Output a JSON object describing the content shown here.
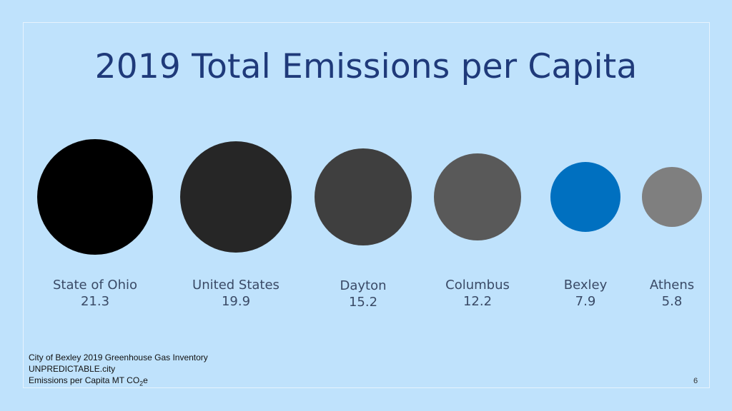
{
  "slide": {
    "title": "2019 Total Emissions per Capita",
    "page_number": "6"
  },
  "footer": {
    "line1": "City of Bexley 2019 Greenhouse Gas Inventory",
    "line2": "UNPREDICTABLE.city",
    "line3_prefix": "Emissions per Capita MT ",
    "line3_co": "CO",
    "line3_sub": "2",
    "line3_suffix": "e"
  },
  "chart_data": {
    "type": "bubble",
    "title": "2019 Total Emissions per Capita",
    "categories": [
      "State of Ohio",
      "United States",
      "Dayton",
      "Columbus",
      "Bexley",
      "Athens"
    ],
    "values": [
      21.3,
      19.9,
      15.2,
      12.2,
      7.9,
      5.8
    ],
    "value_labels": [
      "21.3",
      "19.9",
      "15.2",
      "12.2",
      "7.9",
      "5.8"
    ],
    "colors": [
      "#000000",
      "#262626",
      "#3f3f3f",
      "#595959",
      "#0070c0",
      "#7f7f7f"
    ]
  }
}
